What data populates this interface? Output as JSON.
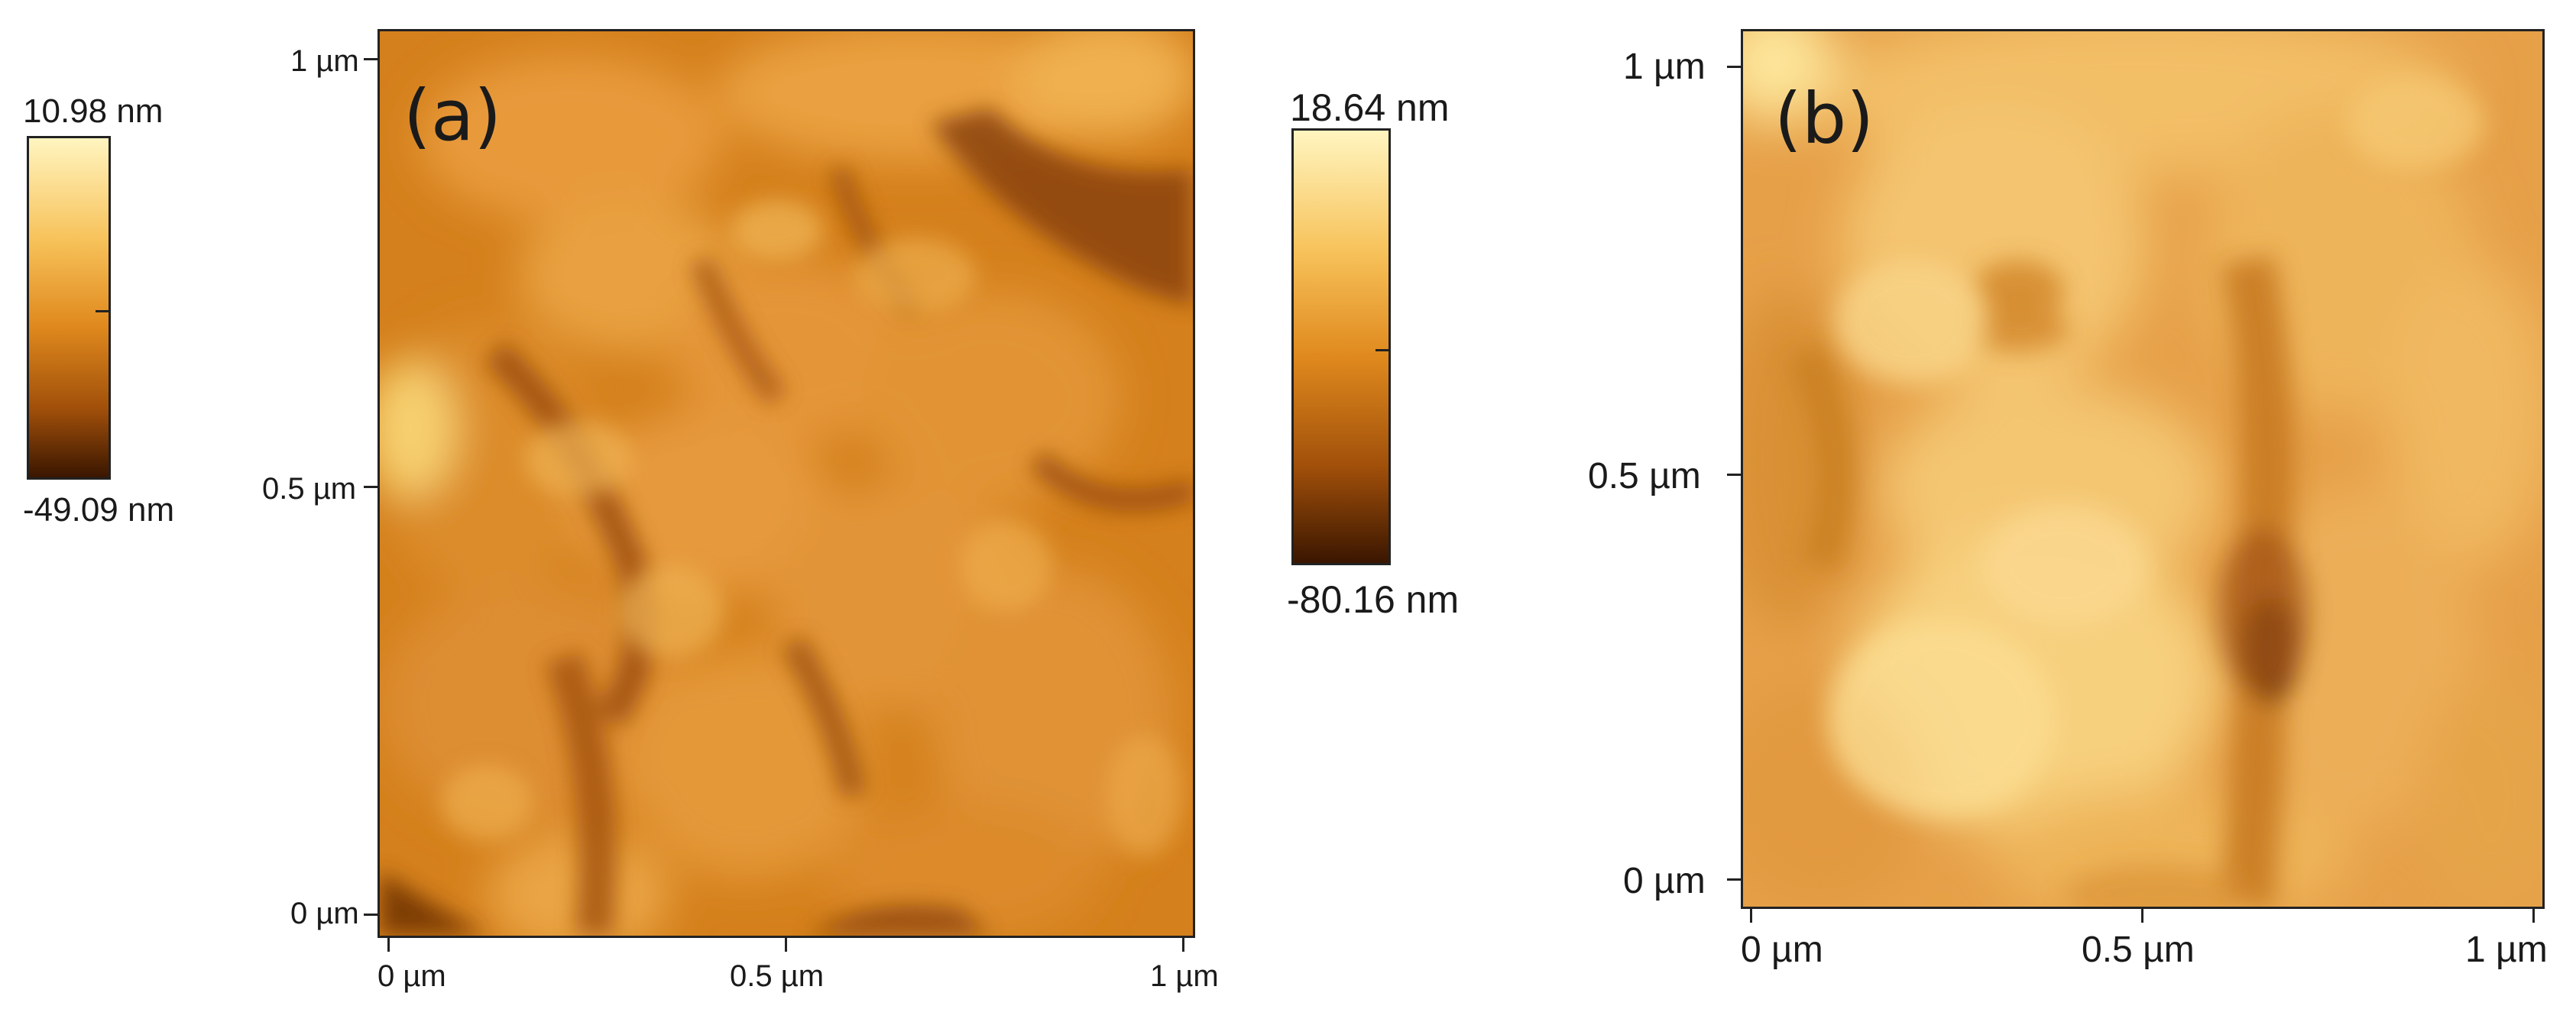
{
  "panel_a": {
    "letter": "(a)",
    "colorbar": {
      "max_label": "10.98 nm",
      "min_label": "-49.09 nm"
    },
    "y_ticks": [
      "1 µm",
      "0.5 µm",
      "0 µm"
    ],
    "x_ticks": [
      "0 µm",
      "0.5 µm",
      "1 µm"
    ]
  },
  "panel_b": {
    "letter": "(b)",
    "colorbar": {
      "max_label": "18.64 nm",
      "min_label": "-80.16 nm"
    },
    "y_ticks": [
      "1 µm",
      "0.5 µm",
      "0 µm"
    ],
    "x_ticks": [
      "0 µm",
      "0.5 µm",
      "1 µm"
    ]
  },
  "colors": {
    "colorbar_top": "#fff3b8",
    "colorbar_mid": "#e08a20",
    "colorbar_bottom": "#3a1500",
    "afm_base": "#d9861f"
  }
}
